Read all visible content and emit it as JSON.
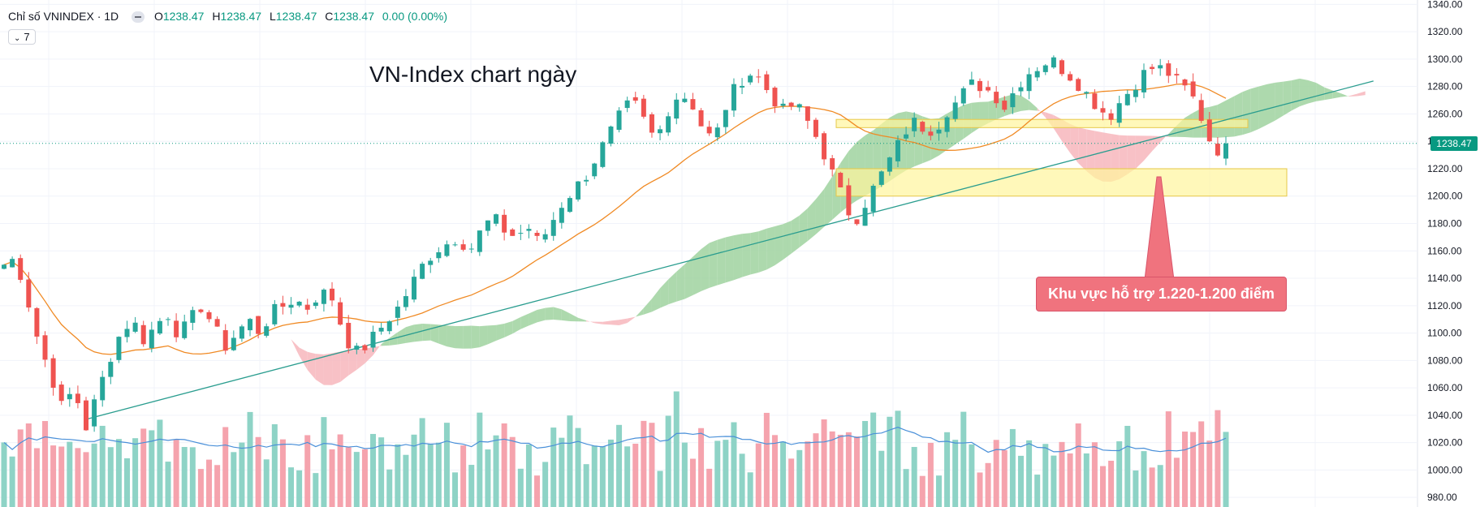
{
  "header": {
    "symbol": "Chỉ số VNINDEX · 1D",
    "o_label": "O",
    "o_value": "1238.47",
    "h_label": "H",
    "h_value": "1238.47",
    "l_label": "L",
    "l_value": "1238.47",
    "c_label": "C",
    "c_value": "1238.47",
    "change": "0.00 (0.00%)",
    "indicator_count": "7"
  },
  "colors": {
    "up": "#26a69a",
    "down": "#ef5350",
    "up_vol": "#8ed3c6",
    "down_vol": "#f5a3ad",
    "cloud_bull": "#9fd29f",
    "cloud_bear": "#f7b6bc",
    "ma": "#f08a24",
    "vol_ma": "#4a90d9",
    "trendline": "#2a9d8f",
    "zone": "#fff59d",
    "callout": "#f0737e",
    "price_line": "#089981"
  },
  "chart_data": {
    "type": "candlestick",
    "title": "VN-Index chart ngày",
    "last_price_label": "1238.47",
    "annotation": "Khu vực hỗ trợ 1.220-1.200 điểm",
    "y_ticks": [
      "1340.00",
      "1320.00",
      "1300.00",
      "1280.00",
      "1260.00",
      "1240.00",
      "1220.00",
      "1200.00",
      "1180.00",
      "1160.00",
      "1140.00",
      "1120.00",
      "1100.00",
      "1080.00",
      "1060.00",
      "1040.00",
      "1020.00",
      "1000.00",
      "980.00"
    ],
    "ylim": [
      973,
      1342
    ],
    "close_path": [
      1150,
      1155,
      1125,
      1092,
      1070,
      1045,
      1060,
      1030,
      1055,
      1080,
      1100,
      1110,
      1095,
      1105,
      1115,
      1098,
      1110,
      1120,
      1105,
      1090,
      1100,
      1110,
      1100,
      1115,
      1120,
      1125,
      1118,
      1128,
      1130,
      1105,
      1085,
      1090,
      1100,
      1110,
      1120,
      1135,
      1150,
      1160,
      1165,
      1170,
      1160,
      1175,
      1185,
      1175,
      1170,
      1178,
      1165,
      1180,
      1195,
      1205,
      1215,
      1230,
      1245,
      1260,
      1270,
      1255,
      1240,
      1262,
      1275,
      1270,
      1250,
      1240,
      1265,
      1282,
      1290,
      1285,
      1272,
      1262,
      1268,
      1255,
      1240,
      1220,
      1200,
      1180,
      1195,
      1210,
      1225,
      1240,
      1255,
      1250,
      1248,
      1262,
      1270,
      1282,
      1280,
      1275,
      1265,
      1280,
      1290,
      1295,
      1300,
      1292,
      1285,
      1275,
      1265,
      1258,
      1270,
      1280,
      1290,
      1295,
      1290,
      1282,
      1275,
      1255,
      1232,
      1238.47
    ],
    "support_zones": [
      [
        1200,
        1220
      ],
      [
        1250,
        1256
      ]
    ],
    "trendline": {
      "x": [
        0.058,
        0.928
      ],
      "y": [
        1037,
        1284
      ]
    },
    "volume_ma_hint": "moving average of volume",
    "legend": "none"
  }
}
